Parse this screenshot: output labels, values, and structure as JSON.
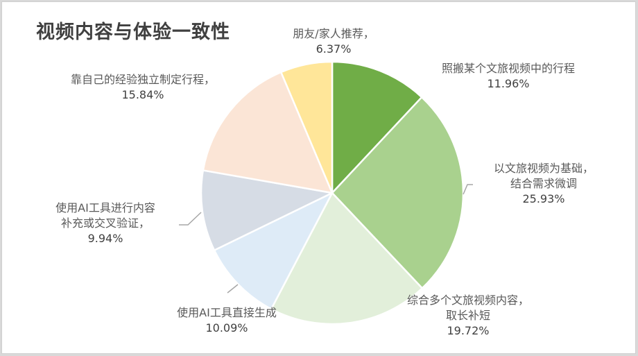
{
  "chart_data": {
    "type": "pie",
    "title": "视频内容与体验一致性",
    "start_angle": "12 o'clock, clockwise",
    "slices": [
      {
        "label": "照搬某个文旅视频中的行程",
        "value": 11.96,
        "value_label": "11.96%",
        "color": "#70AD47"
      },
      {
        "label": "以文旅视频为基础，结合需求微调",
        "value": 25.93,
        "value_label": "25.93%",
        "color": "#A9D18E"
      },
      {
        "label": "综合多个文旅视频内容，取长补短",
        "value": 19.72,
        "value_label": "19.72%",
        "color": "#E2EFDA"
      },
      {
        "label": "使用AI工具直接生成",
        "value": 10.09,
        "value_label": "10.09%",
        "color": "#DEEBF7"
      },
      {
        "label": "使用AI工具进行内容补充或交叉验证",
        "value": 9.94,
        "value_label": "9.94%",
        "color": "#D6DCE5"
      },
      {
        "label": "靠自己的经验独立制定行程",
        "value": 15.84,
        "value_label": "15.84%",
        "color": "#FBE5D6"
      },
      {
        "label": "朋友/家人推荐",
        "value": 6.37,
        "value_label": "6.37%",
        "color": "#FFE699"
      }
    ],
    "legend": "none (data labels with leader lines)"
  },
  "labels": {
    "s0": {
      "line1": "照搬某个文旅视频中的行程",
      "val": "11.96%"
    },
    "s1": {
      "line1": "以文旅视频为基础，",
      "line2": "结合需求微调",
      "val": "25.93%"
    },
    "s2": {
      "line1": "综合多个文旅视频内容，",
      "line2": "取长补短",
      "val": "19.72%"
    },
    "s3": {
      "line1": "使用AI工具直接生成",
      "val": "10.09%"
    },
    "s4": {
      "line1": "使用AI工具进行内容",
      "line2": "补充或交叉验证，",
      "val": "9.94%"
    },
    "s5": {
      "line1": "靠自己的经验独立制定行程，",
      "val": "15.84%"
    },
    "s6": {
      "line1": "朋友/家人推荐，",
      "val": "6.37%"
    }
  }
}
